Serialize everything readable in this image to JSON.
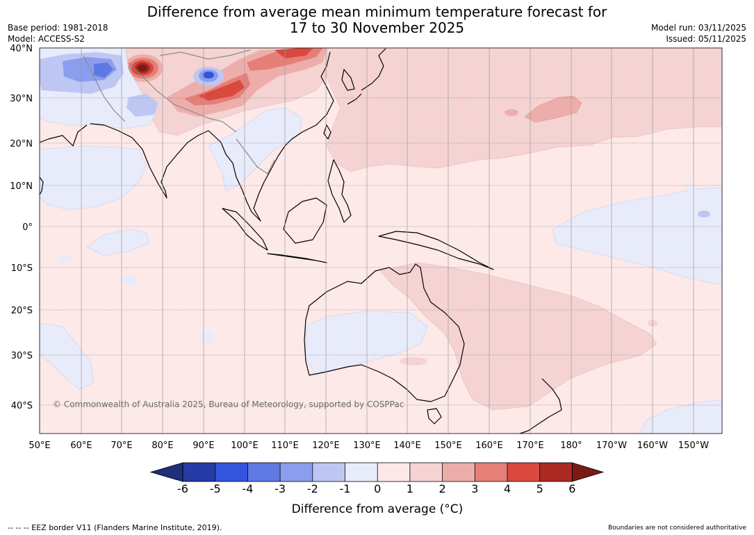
{
  "title_line1": "Difference from average mean minimum temperature forecast for",
  "title_line2": "17 to 30 November 2025",
  "base_period": "Base period: 1981-2018",
  "model": "Model: ACCESS-S2",
  "model_run": "Model run: 03/11/2025",
  "issued": "Issued: 05/11/2025",
  "copyright": "© Commonwealth of Australia 2025, Bureau of Meteorology, supported by COSPPac",
  "lon_labels": [
    "50°E",
    "60°E",
    "70°E",
    "80°E",
    "90°E",
    "100°E",
    "110°E",
    "120°E",
    "130°E",
    "140°E",
    "150°E",
    "160°E",
    "170°E",
    "180°",
    "170°W",
    "160°W",
    "150°W"
  ],
  "lat_labels": [
    "40°N",
    "30°N",
    "20°N",
    "10°N",
    "0°",
    "10°S",
    "20°S",
    "30°S",
    "40°S"
  ],
  "colorbar": {
    "title": "Difference from average (°C)",
    "ticks": [
      "-6",
      "-5",
      "-4",
      "-3",
      "-2",
      "-1",
      "0",
      "1",
      "2",
      "3",
      "4",
      "5",
      "6"
    ],
    "colors": [
      "#1e2f7c",
      "#263aa8",
      "#3354dc",
      "#5f79e4",
      "#8b9ded",
      "#bec7f4",
      "#e8ebfa",
      "#fce9e8",
      "#f5d3d2",
      "#edaeab",
      "#e57f78",
      "#d9493e",
      "#ab2a24",
      "#7a1a15"
    ]
  },
  "footer_left": "--  --  -- EEZ border V11 (Flanders Marine Institute, 2019).",
  "footer_right": "Boundaries are not considered authoritative"
}
